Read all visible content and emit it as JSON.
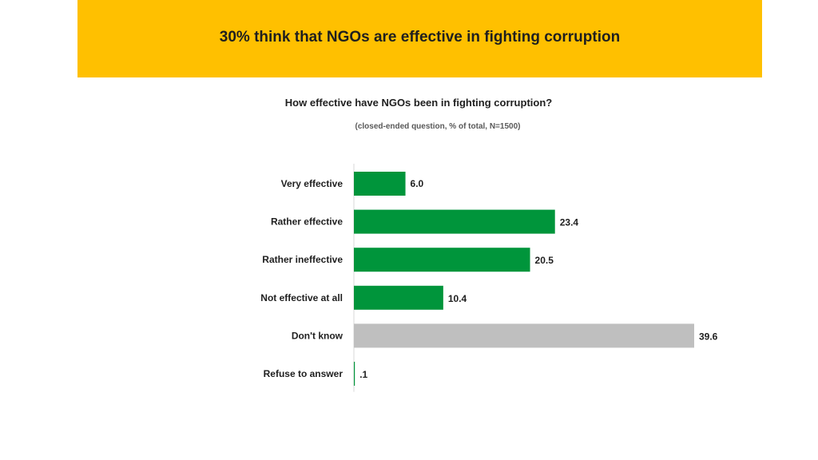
{
  "header": {
    "title": "30% think that NGOs are effective in fighting corruption",
    "banner_color": "#FFC000"
  },
  "question": "How effective have NGOs been in fighting corruption?",
  "note": "(closed-ended question, %  of total, N=1500)",
  "chart_data": {
    "type": "bar",
    "orientation": "horizontal",
    "title": "How effective have NGOs been in fighting corruption?",
    "subtitle": "(closed-ended question, %  of total, N=1500)",
    "categories": [
      "Very effective",
      "Rather effective",
      "Rather ineffective",
      "Not effective at all",
      "Don't know",
      "Refuse to answer"
    ],
    "values": [
      6.0,
      23.4,
      20.5,
      10.4,
      39.6,
      0.1
    ],
    "value_labels": [
      "6.0",
      "23.4",
      "20.5",
      "10.4",
      "39.6",
      ".1"
    ],
    "colors": [
      "#00953B",
      "#00953B",
      "#00953B",
      "#00953B",
      "#BFBFBF",
      "#00953B"
    ],
    "xlim": [
      0,
      39.6
    ],
    "xlabel": "",
    "ylabel": "",
    "grid": false,
    "legend": "none"
  }
}
